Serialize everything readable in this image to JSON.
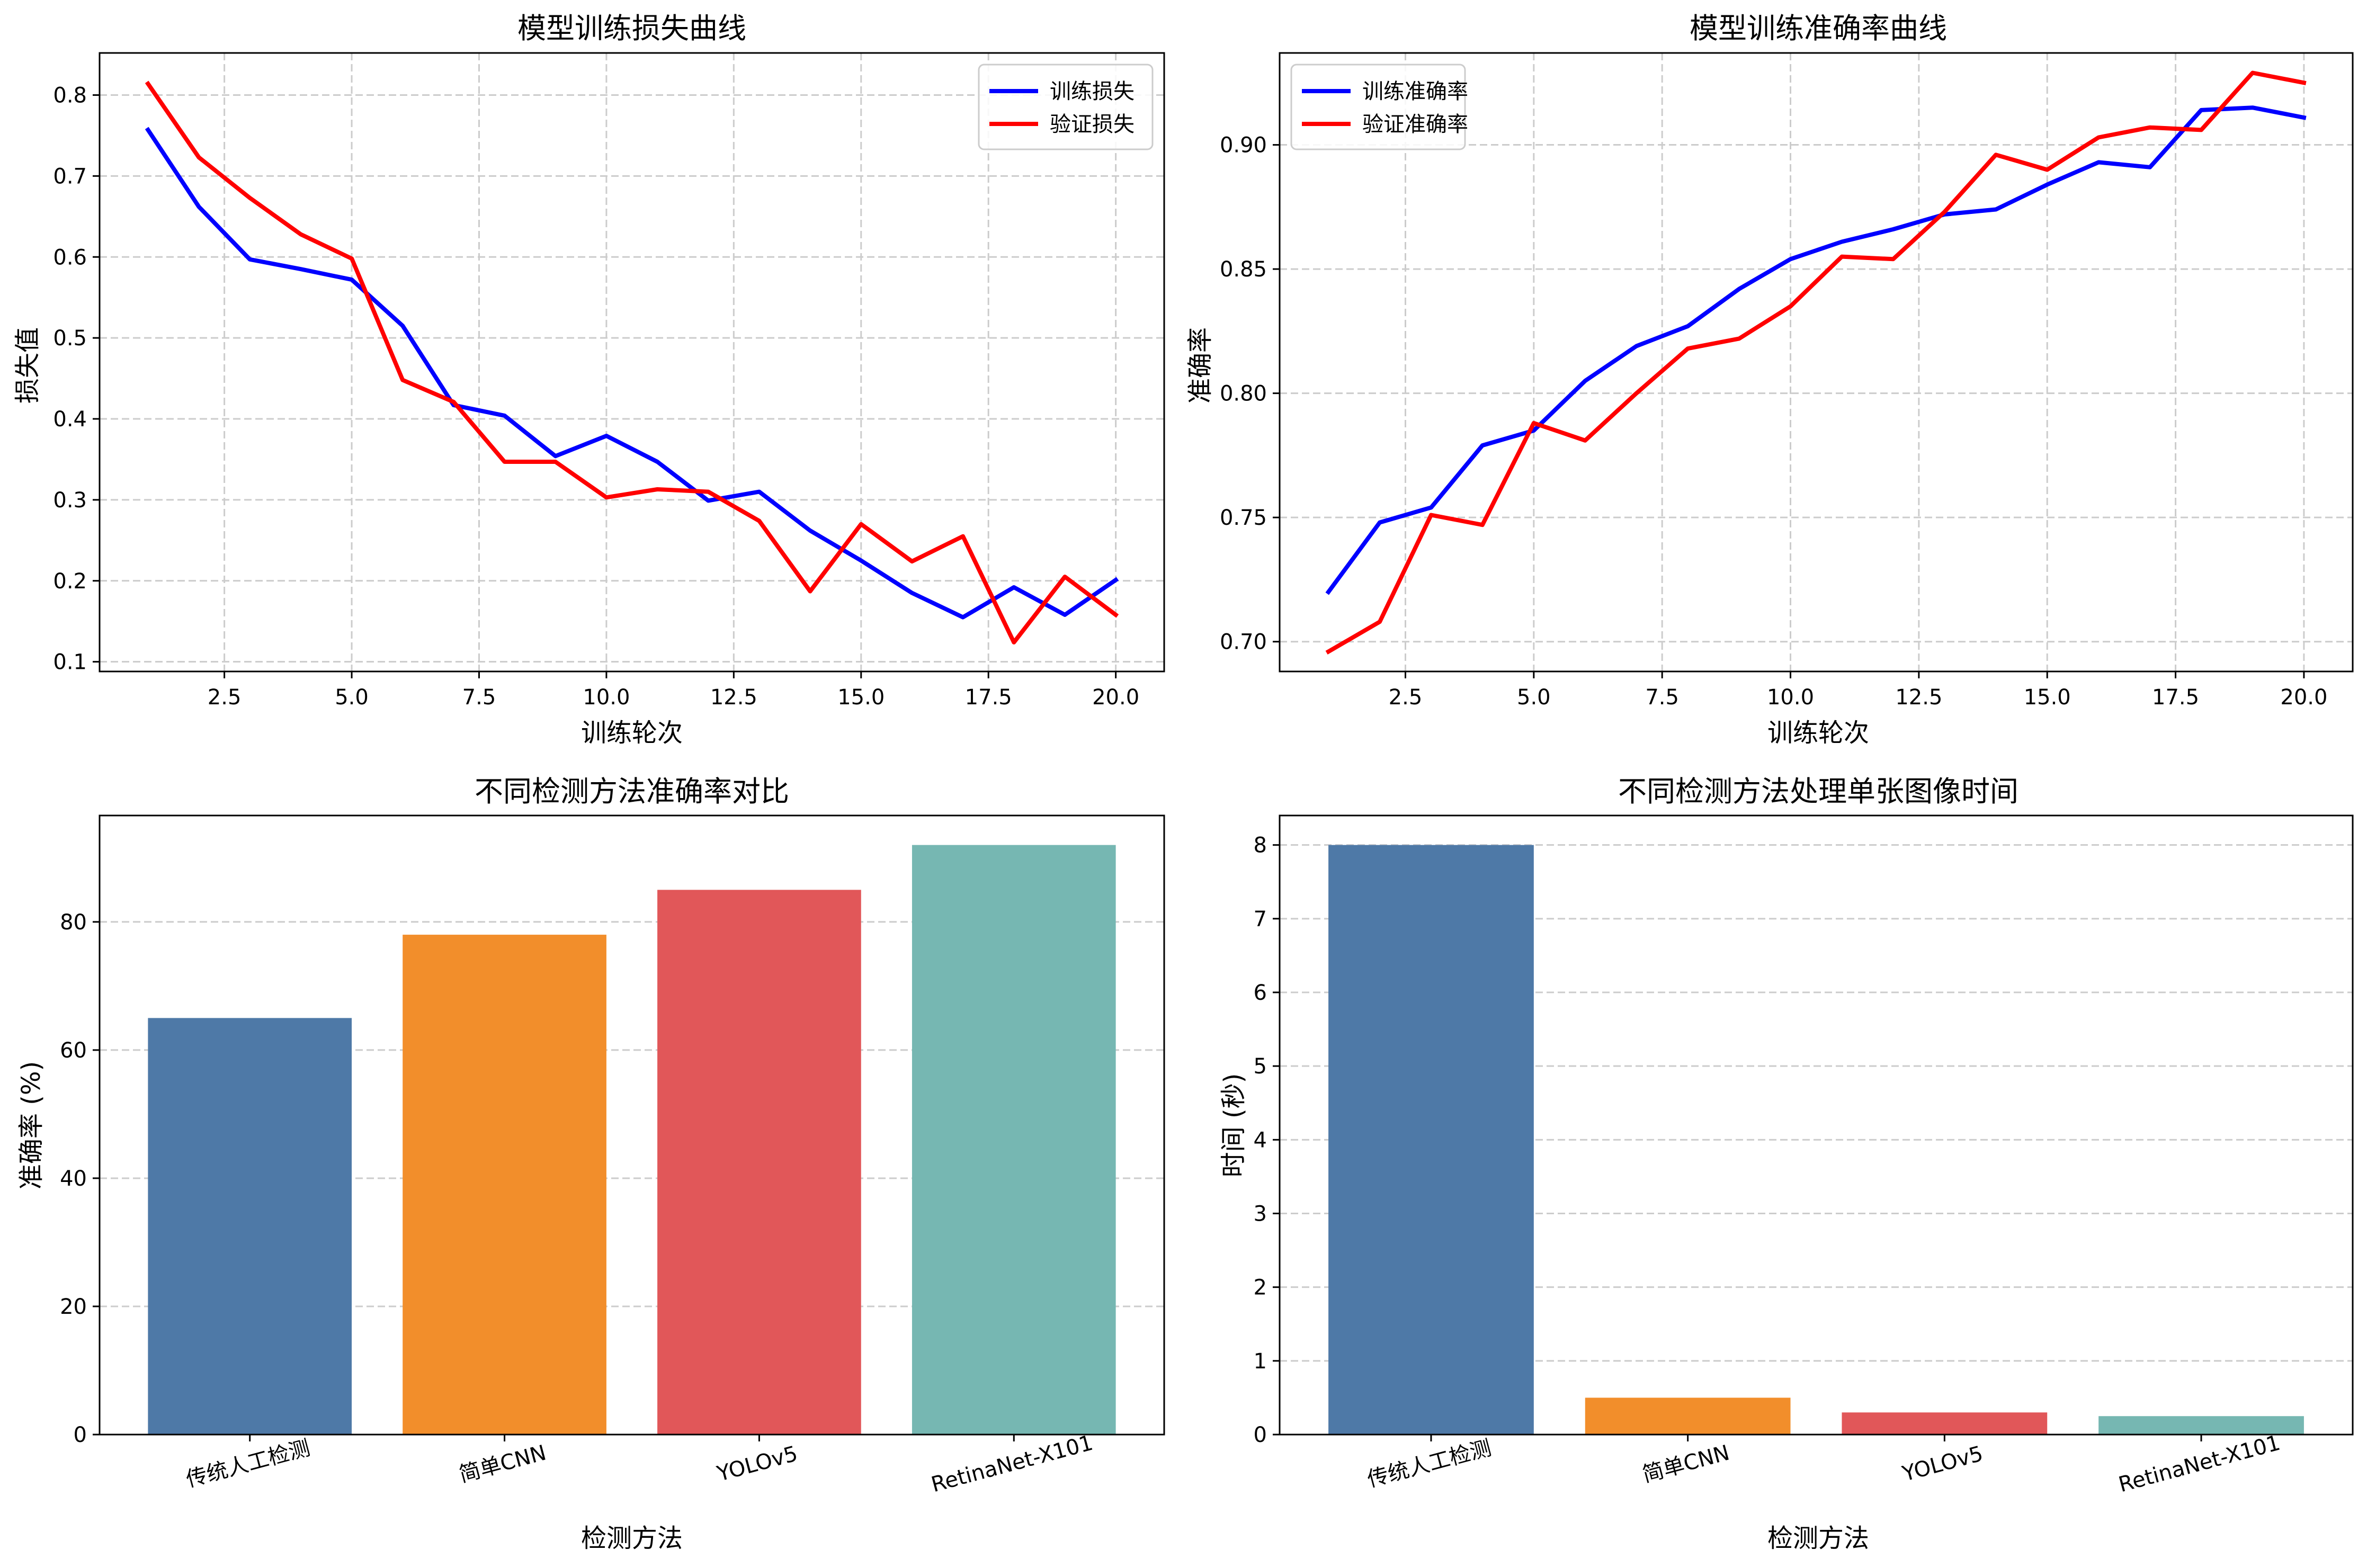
{
  "chart_data": [
    {
      "type": "line",
      "title": "模型训练损失曲线",
      "xlabel": "训练轮次",
      "ylabel": "损失值",
      "xlim": [
        0.05,
        20.95
      ],
      "ylim": [
        0.088,
        0.852
      ],
      "xticks": [
        "2.5",
        "5.0",
        "7.5",
        "10.0",
        "12.5",
        "15.0",
        "17.5",
        "20.0"
      ],
      "xtick_values": [
        2.5,
        5.0,
        7.5,
        10.0,
        12.5,
        15.0,
        17.5,
        20.0
      ],
      "yticks": [
        "0.1",
        "0.2",
        "0.3",
        "0.4",
        "0.5",
        "0.6",
        "0.7",
        "0.8"
      ],
      "ytick_values": [
        0.1,
        0.2,
        0.3,
        0.4,
        0.5,
        0.6,
        0.7,
        0.8
      ],
      "grid": true,
      "legend": "top-right",
      "x": [
        1,
        2,
        3,
        4,
        5,
        6,
        7,
        8,
        9,
        10,
        11,
        12,
        13,
        14,
        15,
        16,
        17,
        18,
        19,
        20
      ],
      "series": [
        {
          "name": "训练损失",
          "color": "#0000ff",
          "values": [
            0.757,
            0.662,
            0.597,
            0.585,
            0.572,
            0.515,
            0.417,
            0.404,
            0.354,
            0.379,
            0.347,
            0.299,
            0.31,
            0.262,
            0.225,
            0.185,
            0.155,
            0.192,
            0.158,
            0.201
          ]
        },
        {
          "name": "验证损失",
          "color": "#ff0000",
          "values": [
            0.814,
            0.723,
            0.673,
            0.628,
            0.598,
            0.448,
            0.421,
            0.347,
            0.347,
            0.303,
            0.313,
            0.31,
            0.274,
            0.187,
            0.27,
            0.224,
            0.255,
            0.124,
            0.205,
            0.158
          ]
        }
      ]
    },
    {
      "type": "line",
      "title": "模型训练准确率曲线",
      "xlabel": "训练轮次",
      "ylabel": "准确率",
      "xlim": [
        0.05,
        20.95
      ],
      "ylim": [
        0.688,
        0.937
      ],
      "xticks": [
        "2.5",
        "5.0",
        "7.5",
        "10.0",
        "12.5",
        "15.0",
        "17.5",
        "20.0"
      ],
      "xtick_values": [
        2.5,
        5.0,
        7.5,
        10.0,
        12.5,
        15.0,
        17.5,
        20.0
      ],
      "yticks": [
        "0.70",
        "0.75",
        "0.80",
        "0.85",
        "0.90"
      ],
      "ytick_values": [
        0.7,
        0.75,
        0.8,
        0.85,
        0.9
      ],
      "grid": true,
      "legend": "top-left",
      "x": [
        1,
        2,
        3,
        4,
        5,
        6,
        7,
        8,
        9,
        10,
        11,
        12,
        13,
        14,
        15,
        16,
        17,
        18,
        19,
        20
      ],
      "series": [
        {
          "name": "训练准确率",
          "color": "#0000ff",
          "values": [
            0.72,
            0.748,
            0.754,
            0.779,
            0.785,
            0.805,
            0.819,
            0.827,
            0.842,
            0.854,
            0.861,
            0.866,
            0.872,
            0.874,
            0.884,
            0.893,
            0.891,
            0.914,
            0.915,
            0.911
          ]
        },
        {
          "name": "验证准确率",
          "color": "#ff0000",
          "values": [
            0.696,
            0.708,
            0.751,
            0.747,
            0.788,
            0.781,
            0.8,
            0.818,
            0.822,
            0.835,
            0.855,
            0.854,
            0.873,
            0.896,
            0.89,
            0.903,
            0.907,
            0.906,
            0.929,
            0.925
          ]
        }
      ]
    },
    {
      "type": "bar",
      "title": "不同检测方法准确率对比",
      "xlabel": "检测方法",
      "ylabel": "准确率 (%)",
      "ylim": [
        0,
        96.6
      ],
      "yticks": [
        "0",
        "20",
        "40",
        "60",
        "80"
      ],
      "ytick_values": [
        0,
        20,
        40,
        60,
        80
      ],
      "grid": true,
      "categories": [
        "传统人工检测",
        "简单CNN",
        "YOLOv5",
        "RetinaNet-X101"
      ],
      "values": [
        65,
        78,
        85,
        92
      ],
      "colors": [
        "#4e79a7",
        "#f28e2b",
        "#e15759",
        "#76b7b2"
      ]
    },
    {
      "type": "bar",
      "title": "不同检测方法处理单张图像时间",
      "xlabel": "检测方法",
      "ylabel": "时间 (秒)",
      "ylim": [
        0,
        8.4
      ],
      "yticks": [
        "0",
        "1",
        "2",
        "3",
        "4",
        "5",
        "6",
        "7",
        "8"
      ],
      "ytick_values": [
        0,
        1,
        2,
        3,
        4,
        5,
        6,
        7,
        8
      ],
      "grid": true,
      "categories": [
        "传统人工检测",
        "简单CNN",
        "YOLOv5",
        "RetinaNet-X101"
      ],
      "values": [
        8.0,
        0.5,
        0.3,
        0.25
      ],
      "colors": [
        "#4e79a7",
        "#f28e2b",
        "#e15759",
        "#76b7b2"
      ]
    }
  ]
}
